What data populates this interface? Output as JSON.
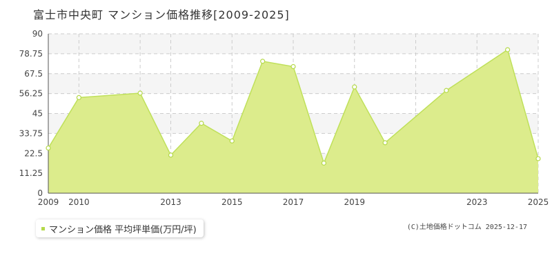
{
  "header": {
    "title": "富士市中央町 マンション価格推移[2009-2025]"
  },
  "legend": {
    "label": "マンション価格 平均坪単価(万円/坪)"
  },
  "credit": "(C)土地価格ドットコム 2025-12-17",
  "colors": {
    "fill": "#dcec8c",
    "line": "#bfe05a",
    "marker": "#b5d94a",
    "grid": "#cccccc",
    "band": "#f5f5f5"
  },
  "chart_data": {
    "type": "area",
    "title": "富士市中央町 マンション価格推移[2009-2025]",
    "xlabel": "",
    "ylabel": "",
    "x": [
      2009,
      2010,
      2012,
      2013,
      2014,
      2015,
      2016,
      2017,
      2018,
      2019,
      2020,
      2022,
      2024,
      2025
    ],
    "series": [
      {
        "name": "マンション価格 平均坪単価(万円/坪)",
        "values": [
          25.5,
          54,
          56.5,
          21.5,
          39.5,
          29.5,
          74.5,
          71.5,
          17,
          60,
          28.5,
          58,
          81,
          19.5
        ]
      }
    ],
    "xlim": [
      2009,
      2025
    ],
    "ylim": [
      0,
      90
    ],
    "x_ticks": [
      "2009",
      "2010",
      "2013",
      "2015",
      "2017",
      "2019",
      "2023",
      "2025"
    ],
    "x_tick_values": [
      2009,
      2010,
      2013,
      2015,
      2017,
      2019,
      2023,
      2025
    ],
    "x_grid_values": [
      2010,
      2012,
      2013,
      2015,
      2017,
      2019,
      2021,
      2023,
      2025
    ],
    "y_ticks": [
      "0",
      "11.25",
      "22.5",
      "33.75",
      "45",
      "56.25",
      "67.5",
      "78.75",
      "90"
    ],
    "y_tick_values": [
      0,
      11.25,
      22.5,
      33.75,
      45,
      56.25,
      67.5,
      78.75,
      90
    ],
    "grid": true,
    "legend_position": "bottom-left"
  }
}
